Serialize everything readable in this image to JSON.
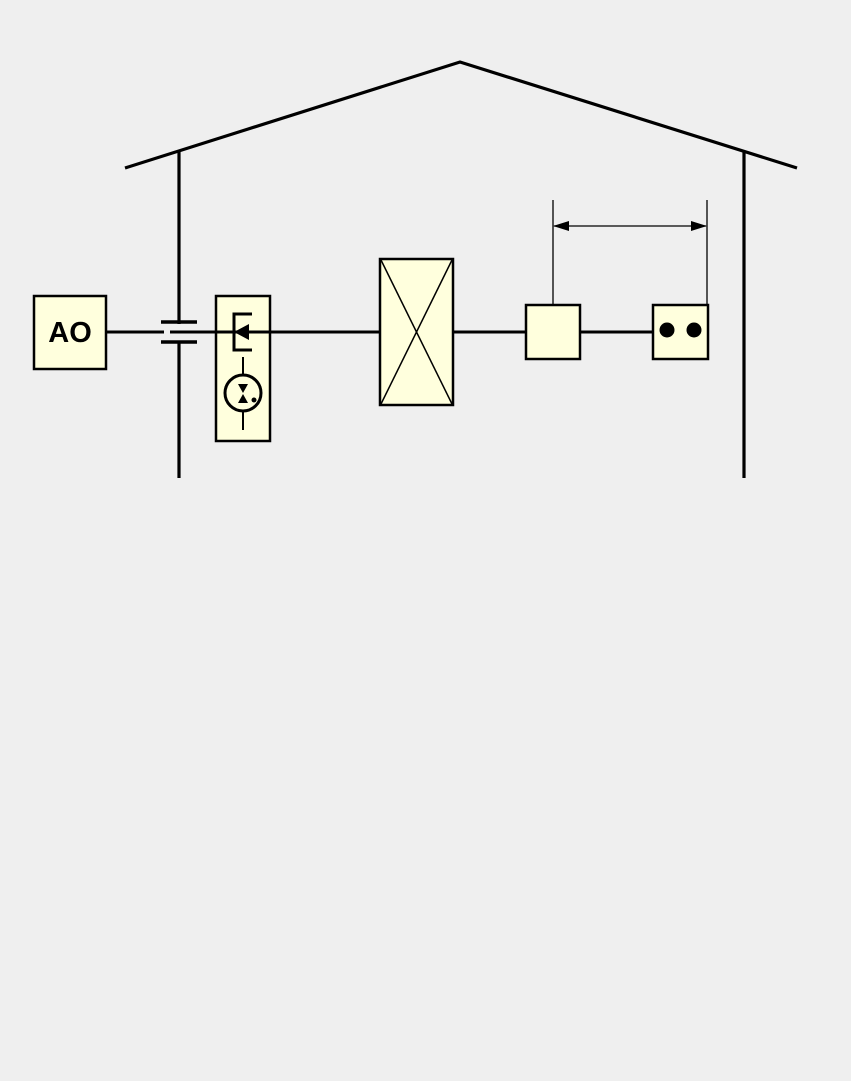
{
  "colors": {
    "background": "#efefef",
    "line": "#000000",
    "box_fill": "#ffffdd"
  },
  "diagram": {
    "ao_box": {
      "label": "AO"
    },
    "icons": [
      "house-outline",
      "capacitor-symbol",
      "transistor-symbol",
      "diode-circle-symbol",
      "crossed-box",
      "dimension-arrow",
      "double-dot-connector"
    ]
  }
}
